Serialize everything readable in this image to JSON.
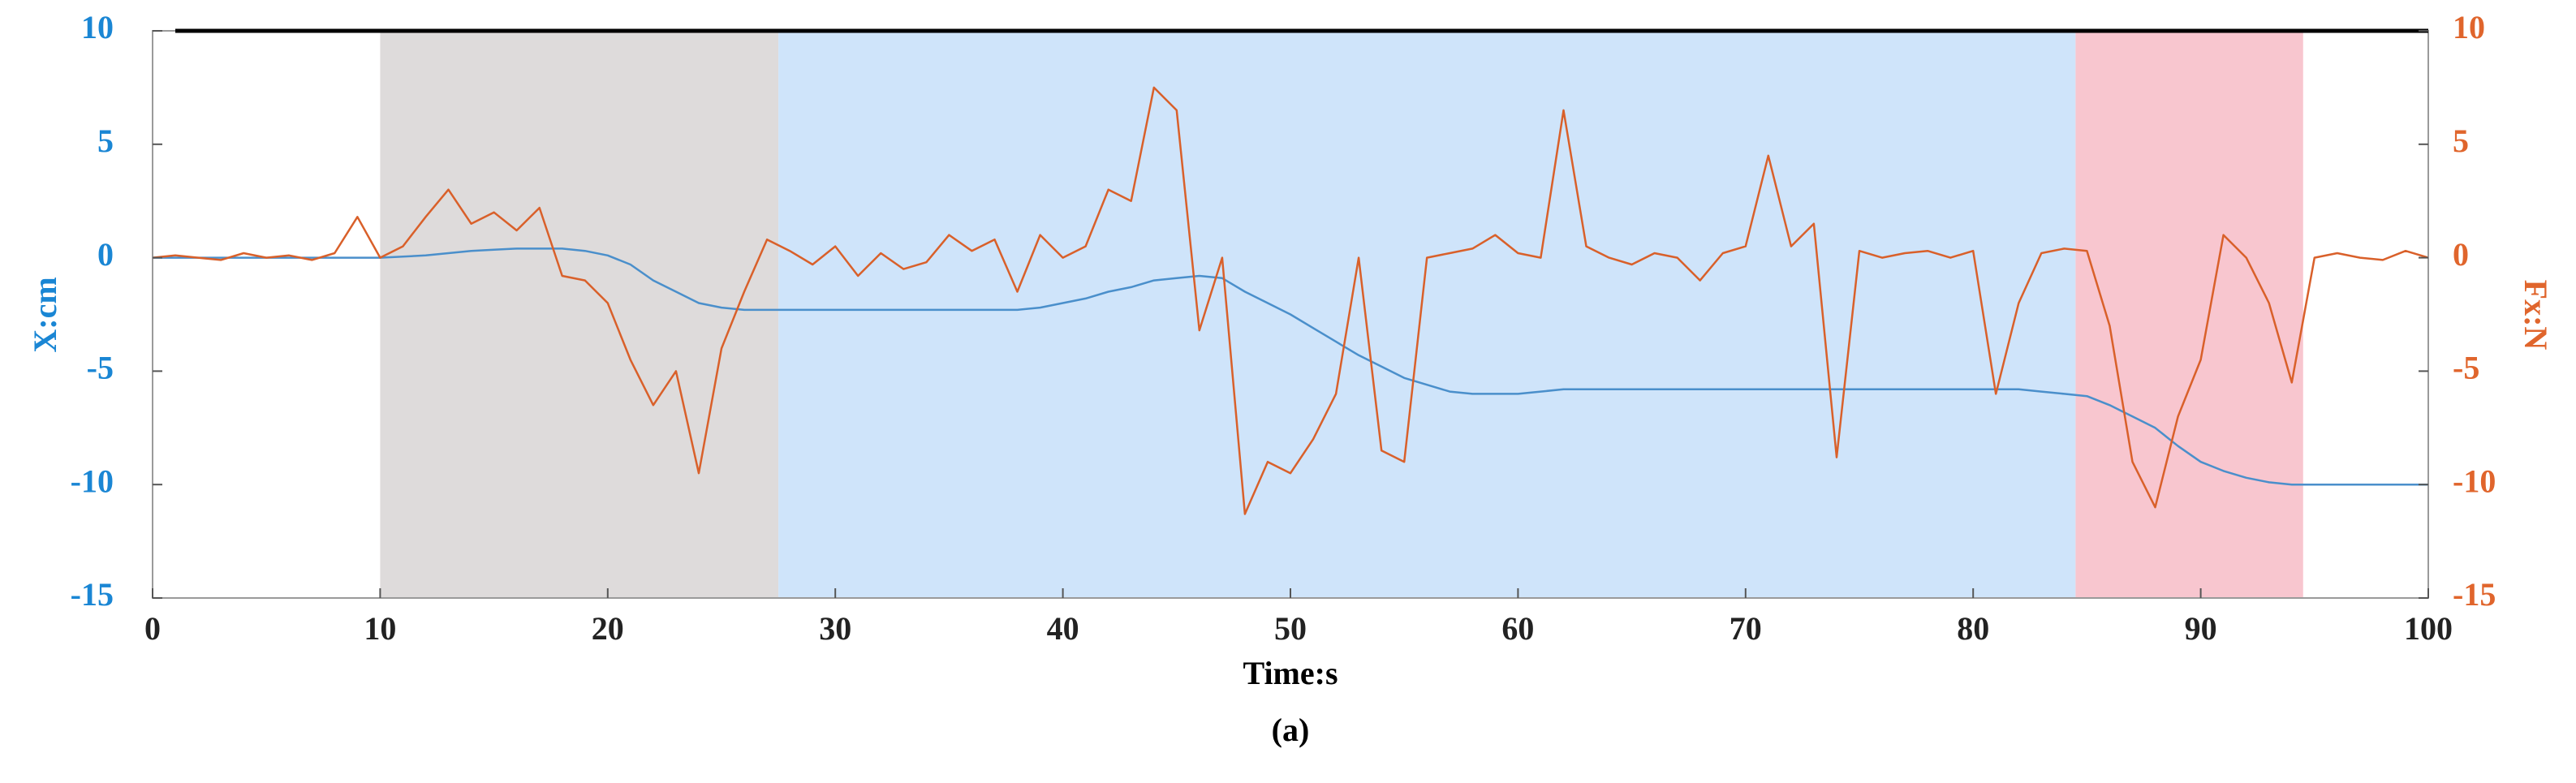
{
  "chart_data": {
    "type": "line",
    "title": "(a)",
    "x_label": "Time:s",
    "y_label": "X:cm",
    "y2_label": "Fx:N",
    "xlim": [
      0,
      100
    ],
    "xticks": [
      0,
      10,
      20,
      30,
      40,
      50,
      60,
      70,
      80,
      90,
      100
    ],
    "ylim": [
      -15,
      10
    ],
    "yticks": [
      -15,
      -10,
      -5,
      0,
      5,
      10
    ],
    "y2lim": [
      -15,
      10
    ],
    "y2ticks": [
      -15,
      -10,
      -5,
      0,
      5,
      10
    ],
    "y_color": "#1a86d4",
    "y2_color": "#e0652c",
    "spans": [
      {
        "x": [
          10,
          27.5
        ],
        "color": "#dedbdb"
      },
      {
        "x": [
          27.5,
          84.5
        ],
        "color": "#cfe4fa"
      },
      {
        "x": [
          84.5,
          94.5
        ],
        "color": "#f8c6cf"
      }
    ],
    "x": [
      0,
      1,
      2,
      3,
      4,
      5,
      6,
      7,
      8,
      9,
      10,
      11,
      12,
      13,
      14,
      15,
      16,
      17,
      18,
      19,
      20,
      21,
      22,
      23,
      24,
      25,
      26,
      27,
      28,
      29,
      30,
      31,
      32,
      33,
      34,
      35,
      36,
      37,
      38,
      39,
      40,
      41,
      42,
      43,
      44,
      45,
      46,
      47,
      48,
      49,
      50,
      51,
      52,
      53,
      54,
      55,
      56,
      57,
      58,
      59,
      60,
      61,
      62,
      63,
      64,
      65,
      66,
      67,
      68,
      69,
      70,
      71,
      72,
      73,
      74,
      75,
      76,
      77,
      78,
      79,
      80,
      81,
      82,
      83,
      84,
      85,
      86,
      87,
      88,
      89,
      90,
      91,
      92,
      93,
      94,
      95,
      96,
      97,
      98,
      99,
      100
    ],
    "series": [
      {
        "color": "#4a8fcb",
        "values": [
          0,
          0,
          0,
          0,
          0,
          0,
          0,
          0,
          0,
          0,
          0,
          0.05,
          0.1,
          0.2,
          0.3,
          0.35,
          0.4,
          0.4,
          0.4,
          0.3,
          0.1,
          -0.3,
          -1,
          -1.5,
          -2,
          -2.2,
          -2.3,
          -2.3,
          -2.3,
          -2.3,
          -2.3,
          -2.3,
          -2.3,
          -2.3,
          -2.3,
          -2.3,
          -2.3,
          -2.3,
          -2.3,
          -2.2,
          -2,
          -1.8,
          -1.5,
          -1.3,
          -1,
          -0.9,
          -0.8,
          -0.9,
          -1.5,
          -2,
          -2.5,
          -3.1,
          -3.7,
          -4.3,
          -4.8,
          -5.3,
          -5.6,
          -5.9,
          -6,
          -6,
          -6,
          -5.9,
          -5.8,
          -5.8,
          -5.8,
          -5.8,
          -5.8,
          -5.8,
          -5.8,
          -5.8,
          -5.8,
          -5.8,
          -5.8,
          -5.8,
          -5.8,
          -5.8,
          -5.8,
          -5.8,
          -5.8,
          -5.8,
          -5.8,
          -5.8,
          -5.8,
          -5.9,
          -6,
          -6.1,
          -6.5,
          -7,
          -7.5,
          -8.3,
          -9,
          -9.4,
          -9.7,
          -9.9,
          -10,
          -10,
          -10,
          -10,
          -10,
          -10,
          -10
        ]
      },
      {
        "color": "#d9602a",
        "axis": "y2",
        "values": [
          0,
          0.1,
          0,
          -0.1,
          0.2,
          0,
          0.1,
          -0.1,
          0.2,
          1.8,
          0,
          0.5,
          1.8,
          3,
          1.5,
          2,
          1.2,
          2.2,
          -0.8,
          -1,
          -2,
          -4.5,
          -6.5,
          -5,
          -9.5,
          -4,
          -1.5,
          0.8,
          0.3,
          -0.3,
          0.5,
          -0.8,
          0.2,
          -0.5,
          -0.2,
          1,
          0.3,
          0.8,
          -1.5,
          1,
          0,
          0.5,
          3,
          2.5,
          7.5,
          6.5,
          -3.2,
          0,
          -11.3,
          -9,
          -9.5,
          -8,
          -6,
          0,
          -8.5,
          -9,
          0,
          0.2,
          0.4,
          1,
          0.2,
          0,
          6.5,
          0.5,
          0,
          -0.3,
          0.2,
          0,
          -1,
          0.2,
          0.5,
          4.5,
          0.5,
          1.5,
          -8.8,
          0.3,
          0,
          0.2,
          0.3,
          0,
          0.3,
          -6,
          -2,
          0.2,
          0.4,
          0.3,
          -3,
          -9,
          -11,
          -7,
          -4.5,
          1,
          0,
          -2,
          -5.5,
          0,
          0.2,
          0,
          -0.1,
          0.3,
          0
        ]
      }
    ]
  }
}
